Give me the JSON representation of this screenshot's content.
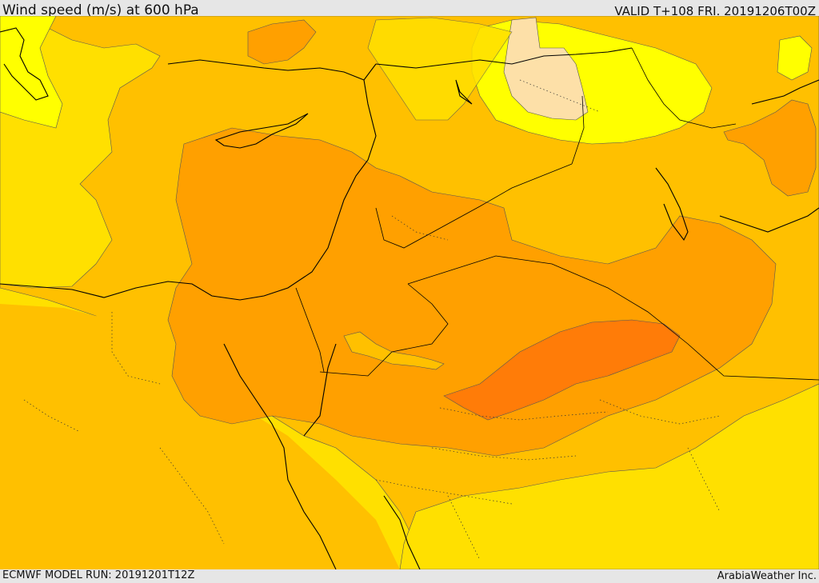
{
  "header": {
    "title": "Wind speed (m/s) at 600 hPa",
    "valid_time": "VALID T+108 FRI. 20191206T00Z"
  },
  "footer": {
    "model_run": "ECMWF MODEL RUN: 20191201T12Z",
    "credit": "ArabiaWeather Inc."
  },
  "colors": {
    "band_lightest": "#fde0a8",
    "band_yellow": "#ffff00",
    "band_gold": "#ffe000",
    "band_amber": "#ffc000",
    "band_orange": "#ffa000",
    "band_dark_orange": "#ff7c08",
    "coastline": "#000000",
    "contour": "#555555",
    "frame": "#e6e6e6"
  },
  "icons": []
}
